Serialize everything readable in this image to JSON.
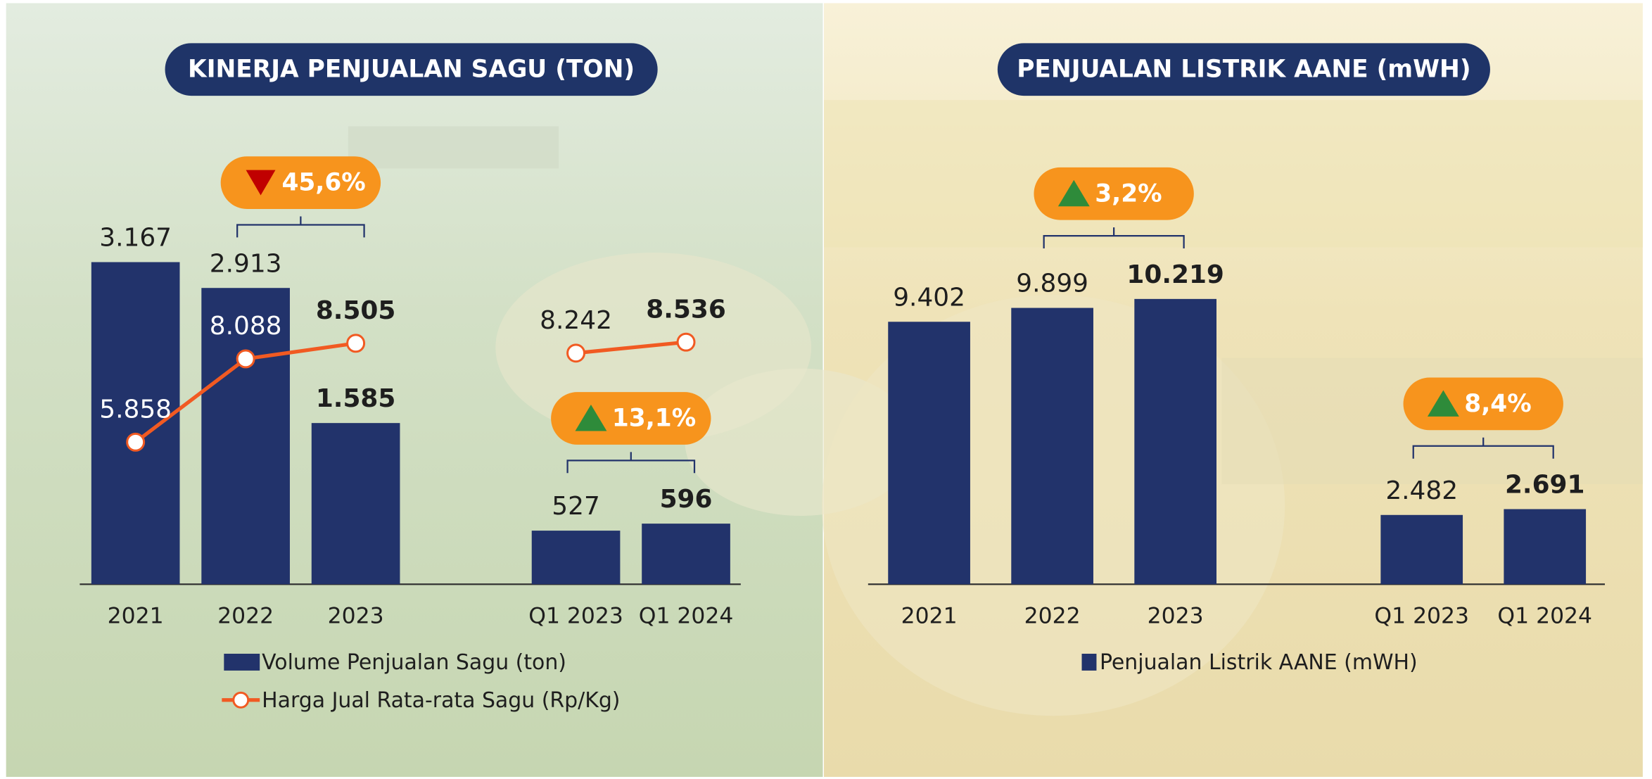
{
  "chart_data": [
    {
      "type": "bar",
      "title": "KINERJA PENJUALAN SAGU (TON)",
      "categories": [
        "2021",
        "2022",
        "2023",
        null,
        "Q1 2023",
        "Q1 2024"
      ],
      "series": [
        {
          "name": "Volume Penjualan Sagu (ton)",
          "type": "bar",
          "color": "#22336b",
          "values": [
            3167,
            2913,
            1585,
            null,
            527,
            596
          ],
          "value_labels": [
            "3.167",
            "2.913",
            "1.585",
            null,
            "527",
            "596"
          ]
        },
        {
          "name": "Harga Jual Rata-rata Sagu (Rp/Kg)",
          "type": "line",
          "color": "#f15a22",
          "values": [
            5858,
            8088,
            8505,
            null,
            8242,
            8536
          ],
          "value_labels": [
            "5.858",
            "8.088",
            "8.505",
            null,
            "8.242",
            "8.536"
          ]
        }
      ],
      "annotations": [
        {
          "text": "45,6%",
          "direction": "down",
          "categories": [
            "2022",
            "2023"
          ]
        },
        {
          "text": "13,1%",
          "direction": "up",
          "categories": [
            "Q1 2023",
            "Q1 2024"
          ]
        }
      ]
    },
    {
      "type": "bar",
      "title": "PENJUALAN LISTRIK AANE (mWH)",
      "categories": [
        "2021",
        "2022",
        "2023",
        null,
        "Q1 2023",
        "Q1 2024"
      ],
      "series": [
        {
          "name": "Penjualan Listrik AANE (mWH)",
          "type": "bar",
          "color": "#22336b",
          "values": [
            9402,
            9899,
            10219,
            null,
            2482,
            2691
          ],
          "value_labels": [
            "9.402",
            "9.899",
            "10.219",
            null,
            "2.482",
            "2.691"
          ]
        }
      ],
      "annotations": [
        {
          "text": "3,2%",
          "direction": "up",
          "categories": [
            "2022",
            "2023"
          ]
        },
        {
          "text": "8,4%",
          "direction": "up",
          "categories": [
            "Q1 2023",
            "Q1 2024"
          ]
        }
      ]
    }
  ]
}
